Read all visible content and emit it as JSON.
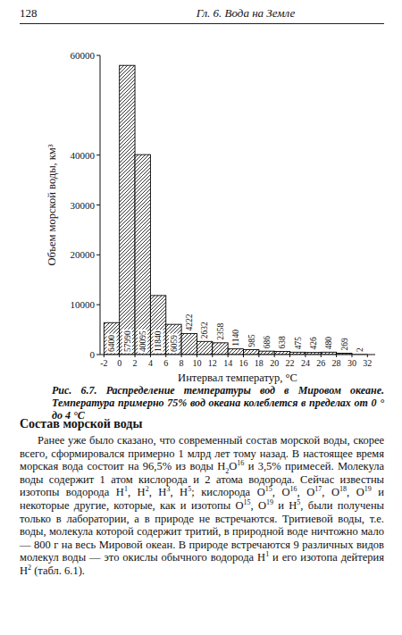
{
  "page": {
    "number": "128",
    "header": "Гл. 6. Вода на Земле"
  },
  "chart_data": {
    "type": "histogram",
    "x_label": "Интервал температур, °С",
    "y_label": "Объем морской воды, км³",
    "bins": [
      -2,
      0,
      2,
      4,
      6,
      8,
      10,
      12,
      14,
      16,
      18,
      20,
      22,
      24,
      26,
      28,
      30,
      32
    ],
    "values": [
      6400,
      57990,
      40095,
      11840,
      6059,
      4222,
      2632,
      2358,
      1140,
      985,
      686,
      638,
      475,
      426,
      480,
      269,
      2
    ],
    "color": "#000000",
    "xlim": [
      -2.5,
      33
    ],
    "ylim": [
      0,
      60000
    ],
    "xticks": [
      -2,
      0,
      2,
      4,
      6,
      8,
      10,
      12,
      14,
      16,
      18,
      20,
      22,
      24,
      26,
      28,
      30,
      32
    ],
    "yticks": [
      0,
      10000,
      20000,
      30000,
      40000,
      60000
    ],
    "data_labels": true,
    "grid": false
  },
  "caption": "Рис. 6.7. Распределение температуры вод в Мировом океане. Температура примерно 75% вод океана колеблется в пределах от 0 ° до 4 °С",
  "section": {
    "title": "Состав морской воды",
    "paragraph": [
      {
        "t": "Ранее уже было сказано, что современный состав морской воды, скорее всего, сформировался примерно 1 млрд лет тому назад. В настоящее время морская вода состоит на 96,5% из воды H"
      },
      {
        "sub": "2"
      },
      {
        "t": "O"
      },
      {
        "sup": "16"
      },
      {
        "t": " и 3,5% примесей. Молекула воды содержит 1 атом кислорода и 2 атома водорода. Сейчас известны изотопы водорода H"
      },
      {
        "sup": "1"
      },
      {
        "t": ", H"
      },
      {
        "sup": "2"
      },
      {
        "t": ", H"
      },
      {
        "sup": "3"
      },
      {
        "t": ", H"
      },
      {
        "sup": "5"
      },
      {
        "t": "; кислорода O"
      },
      {
        "sup": "15"
      },
      {
        "t": ", O"
      },
      {
        "sup": "16"
      },
      {
        "t": ", O"
      },
      {
        "sup": "17"
      },
      {
        "t": ", O"
      },
      {
        "sup": "18"
      },
      {
        "t": ", O"
      },
      {
        "sup": "19"
      },
      {
        "t": " и некоторые другие, которые, как и изотопы O"
      },
      {
        "sup": "15"
      },
      {
        "t": ", O"
      },
      {
        "sup": "19"
      },
      {
        "t": " и H"
      },
      {
        "sup": "5"
      },
      {
        "t": ", были получены только в лаборатории, а в природе не встречаются. Тритиевой воды, т.е. воды, молекула которой содержит тритий, в природной воде ничтожно мало — 800 г на весь Мировой океан. В природе встречаются 9 различных видов молекул воды — это окислы обычного водорода H"
      },
      {
        "sup": "1"
      },
      {
        "t": " и его изотопа дейтерия H"
      },
      {
        "sup": "2"
      },
      {
        "t": " (табл. 6.1)."
      }
    ]
  }
}
